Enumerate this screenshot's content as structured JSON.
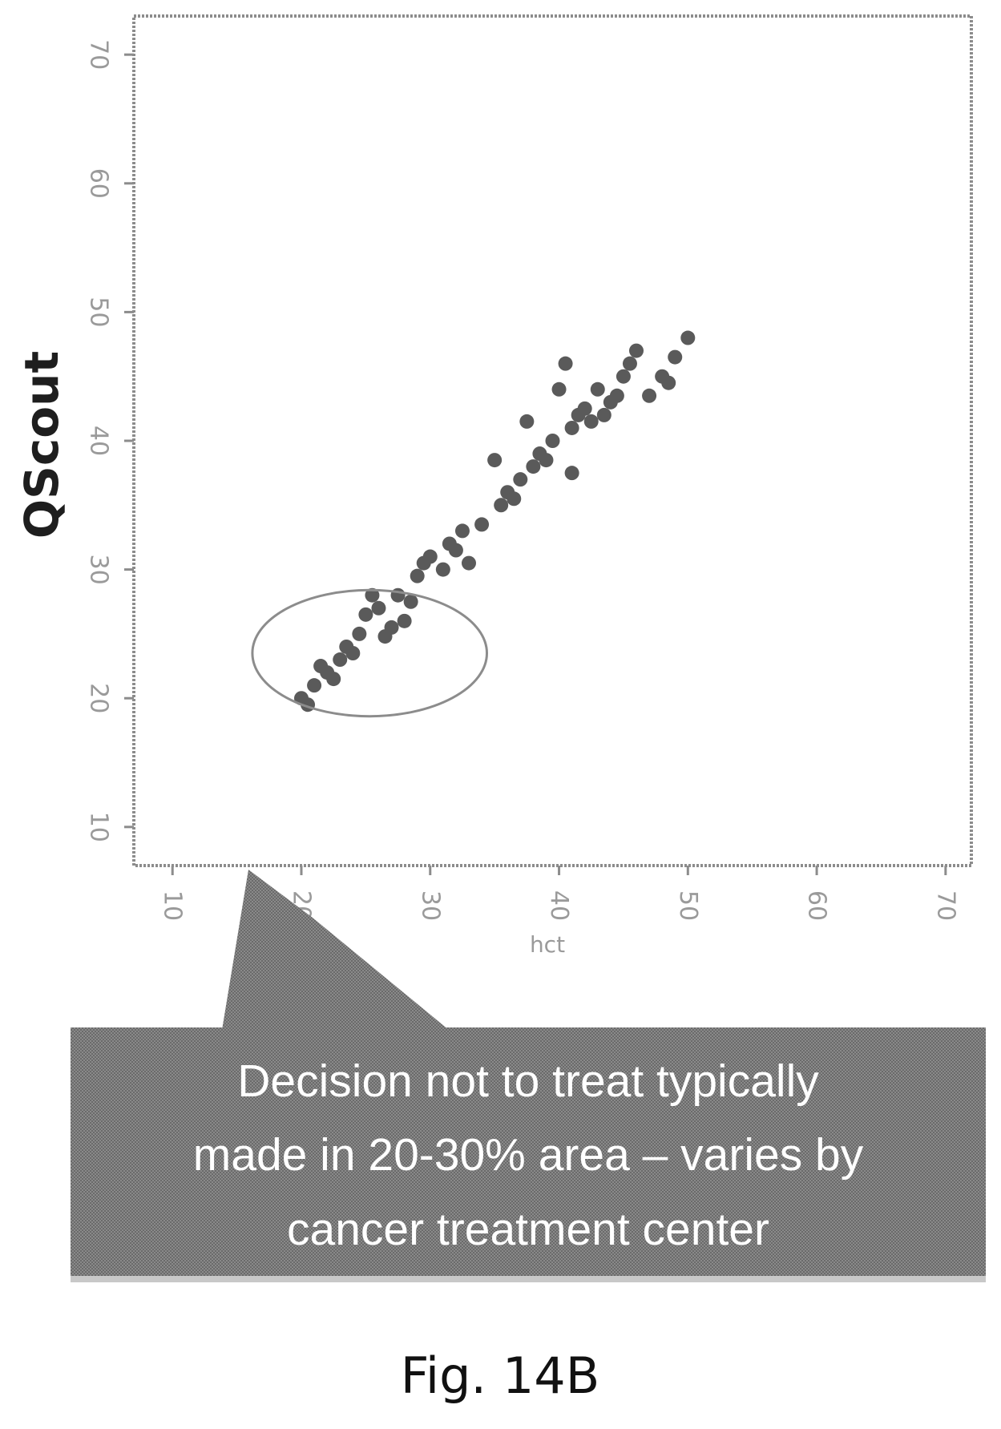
{
  "chart_data": {
    "type": "scatter",
    "title": "",
    "xlabel": "hct",
    "ylabel": "QScout",
    "xlim": [
      7,
      72
    ],
    "ylim": [
      7,
      73
    ],
    "xticks": [
      10,
      20,
      30,
      40,
      50,
      60,
      70
    ],
    "yticks": [
      10,
      20,
      30,
      40,
      50,
      60,
      70
    ],
    "grid": false,
    "points": [
      {
        "x": 20,
        "y": 20
      },
      {
        "x": 20.5,
        "y": 19.5
      },
      {
        "x": 21,
        "y": 21
      },
      {
        "x": 21.5,
        "y": 22.5
      },
      {
        "x": 22,
        "y": 22
      },
      {
        "x": 22.5,
        "y": 21.5
      },
      {
        "x": 23,
        "y": 23
      },
      {
        "x": 23.5,
        "y": 24
      },
      {
        "x": 24,
        "y": 23.5
      },
      {
        "x": 24.5,
        "y": 25
      },
      {
        "x": 25,
        "y": 26.5
      },
      {
        "x": 25.5,
        "y": 28
      },
      {
        "x": 26,
        "y": 27
      },
      {
        "x": 26.5,
        "y": 24.8
      },
      {
        "x": 27,
        "y": 25.5
      },
      {
        "x": 27.5,
        "y": 28
      },
      {
        "x": 28,
        "y": 26
      },
      {
        "x": 28.5,
        "y": 27.5
      },
      {
        "x": 29,
        "y": 29.5
      },
      {
        "x": 29.5,
        "y": 30.5
      },
      {
        "x": 30,
        "y": 31
      },
      {
        "x": 31,
        "y": 30
      },
      {
        "x": 31.5,
        "y": 32
      },
      {
        "x": 32,
        "y": 31.5
      },
      {
        "x": 32.5,
        "y": 33
      },
      {
        "x": 33,
        "y": 30.5
      },
      {
        "x": 34,
        "y": 33.5
      },
      {
        "x": 35,
        "y": 38.5
      },
      {
        "x": 35.5,
        "y": 35
      },
      {
        "x": 36,
        "y": 36
      },
      {
        "x": 36.5,
        "y": 35.5
      },
      {
        "x": 37,
        "y": 37
      },
      {
        "x": 37.5,
        "y": 41.5
      },
      {
        "x": 38,
        "y": 38
      },
      {
        "x": 38.5,
        "y": 39
      },
      {
        "x": 39,
        "y": 38.5
      },
      {
        "x": 39.5,
        "y": 40
      },
      {
        "x": 40,
        "y": 44
      },
      {
        "x": 40.5,
        "y": 46
      },
      {
        "x": 41,
        "y": 41
      },
      {
        "x": 41,
        "y": 37.5
      },
      {
        "x": 41.5,
        "y": 42
      },
      {
        "x": 42,
        "y": 42.5
      },
      {
        "x": 42.5,
        "y": 41.5
      },
      {
        "x": 43,
        "y": 44
      },
      {
        "x": 43.5,
        "y": 42
      },
      {
        "x": 44,
        "y": 43
      },
      {
        "x": 44.5,
        "y": 43.5
      },
      {
        "x": 45,
        "y": 45
      },
      {
        "x": 45.5,
        "y": 46
      },
      {
        "x": 46,
        "y": 47
      },
      {
        "x": 47,
        "y": 43.5
      },
      {
        "x": 48,
        "y": 45
      },
      {
        "x": 48.5,
        "y": 44.5
      },
      {
        "x": 49,
        "y": 46.5
      },
      {
        "x": 50,
        "y": 48
      }
    ],
    "annotation": {
      "type": "ellipse",
      "center": [
        25.3,
        23.5
      ],
      "radius": [
        9.1,
        4.9
      ]
    },
    "callout": {
      "lines": [
        "Decision not to treat typically",
        "made in 20-30% area – varies by",
        "cancer treatment center"
      ],
      "fill": "#6e6e6e",
      "text_color": "#ffffff"
    },
    "colors": {
      "points": "#5a5a5a",
      "frame": "#8c8c8c",
      "ellipse": "#8c8c8c"
    }
  },
  "figure_label": "Fig. 14B"
}
